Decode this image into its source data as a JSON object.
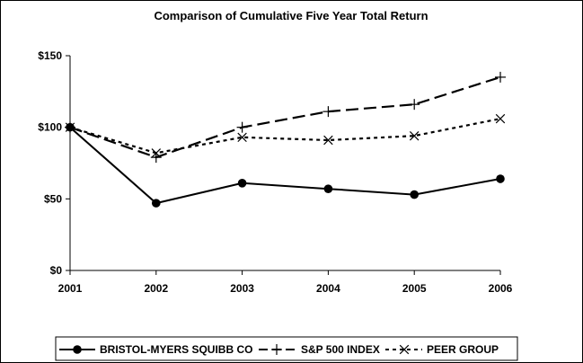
{
  "chart_data": {
    "type": "line",
    "title": "Comparison of Cumulative Five Year Total Return",
    "x": [
      "2001",
      "2002",
      "2003",
      "2004",
      "2005",
      "2006"
    ],
    "y_ticks": [
      "$0",
      "$50",
      "$100",
      "$150"
    ],
    "ylim": [
      0,
      150
    ],
    "grid": false,
    "legend_position": "bottom",
    "series": [
      {
        "name": "BRISTOL-MYERS SQUIBB CO",
        "values": [
          100,
          47,
          61,
          57,
          53,
          64
        ],
        "style": "solid",
        "marker": "filled-circle",
        "color": "#000000"
      },
      {
        "name": "S&P 500 INDEX",
        "values": [
          100,
          79,
          100,
          111,
          116,
          135
        ],
        "style": "long-dash",
        "marker": "plus",
        "color": "#000000"
      },
      {
        "name": "PEER GROUP",
        "values": [
          100,
          82,
          93,
          91,
          94,
          106
        ],
        "style": "short-dash",
        "marker": "x",
        "color": "#000000"
      }
    ]
  }
}
